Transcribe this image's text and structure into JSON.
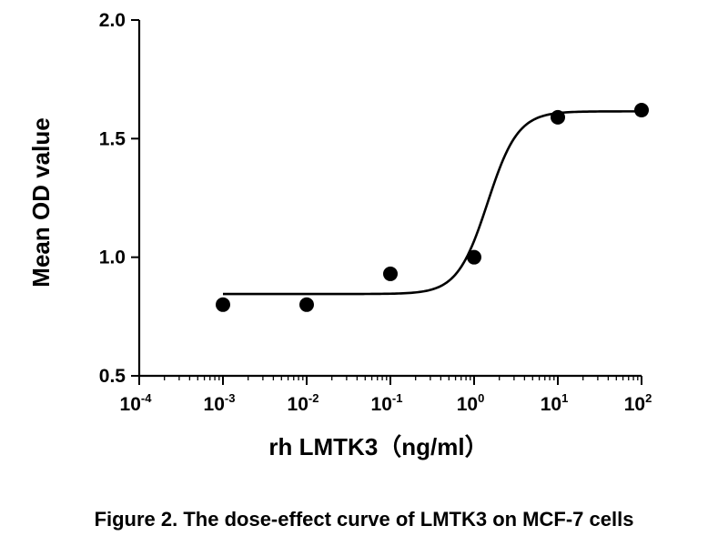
{
  "caption": "Figure 2. The dose-effect curve of LMTK3 on MCF-7 cells",
  "chart_data": {
    "type": "scatter",
    "xscale": "log",
    "xlabel": "rh LMTK3（ng/ml）",
    "ylabel": "Mean OD value",
    "xlim": [
      0.0001,
      100
    ],
    "ylim": [
      0.5,
      2.0
    ],
    "x_ticks": [
      {
        "base": "10",
        "exp": "-4",
        "value": 0.0001
      },
      {
        "base": "10",
        "exp": "-3",
        "value": 0.001
      },
      {
        "base": "10",
        "exp": "-2",
        "value": 0.01
      },
      {
        "base": "10",
        "exp": "-1",
        "value": 0.1
      },
      {
        "base": "10",
        "exp": "0",
        "value": 1
      },
      {
        "base": "10",
        "exp": "1",
        "value": 10
      },
      {
        "base": "10",
        "exp": "2",
        "value": 100
      }
    ],
    "y_ticks": [
      "0.5",
      "1.0",
      "1.5",
      "2.0"
    ],
    "grid": false,
    "legend": "none",
    "series": [
      {
        "x": [
          0.001,
          0.01,
          0.1,
          1,
          10,
          100
        ],
        "y": [
          0.8,
          0.8,
          0.93,
          1.0,
          1.59,
          1.62
        ]
      }
    ],
    "fit_curve": {
      "model": "sigmoidal dose-response",
      "bottom": 0.845,
      "top": 1.615,
      "ec50": 1.45,
      "hill_slope": 2.4
    },
    "colors": {
      "marker": "#000000",
      "line": "#000000",
      "axis": "#000000"
    }
  }
}
